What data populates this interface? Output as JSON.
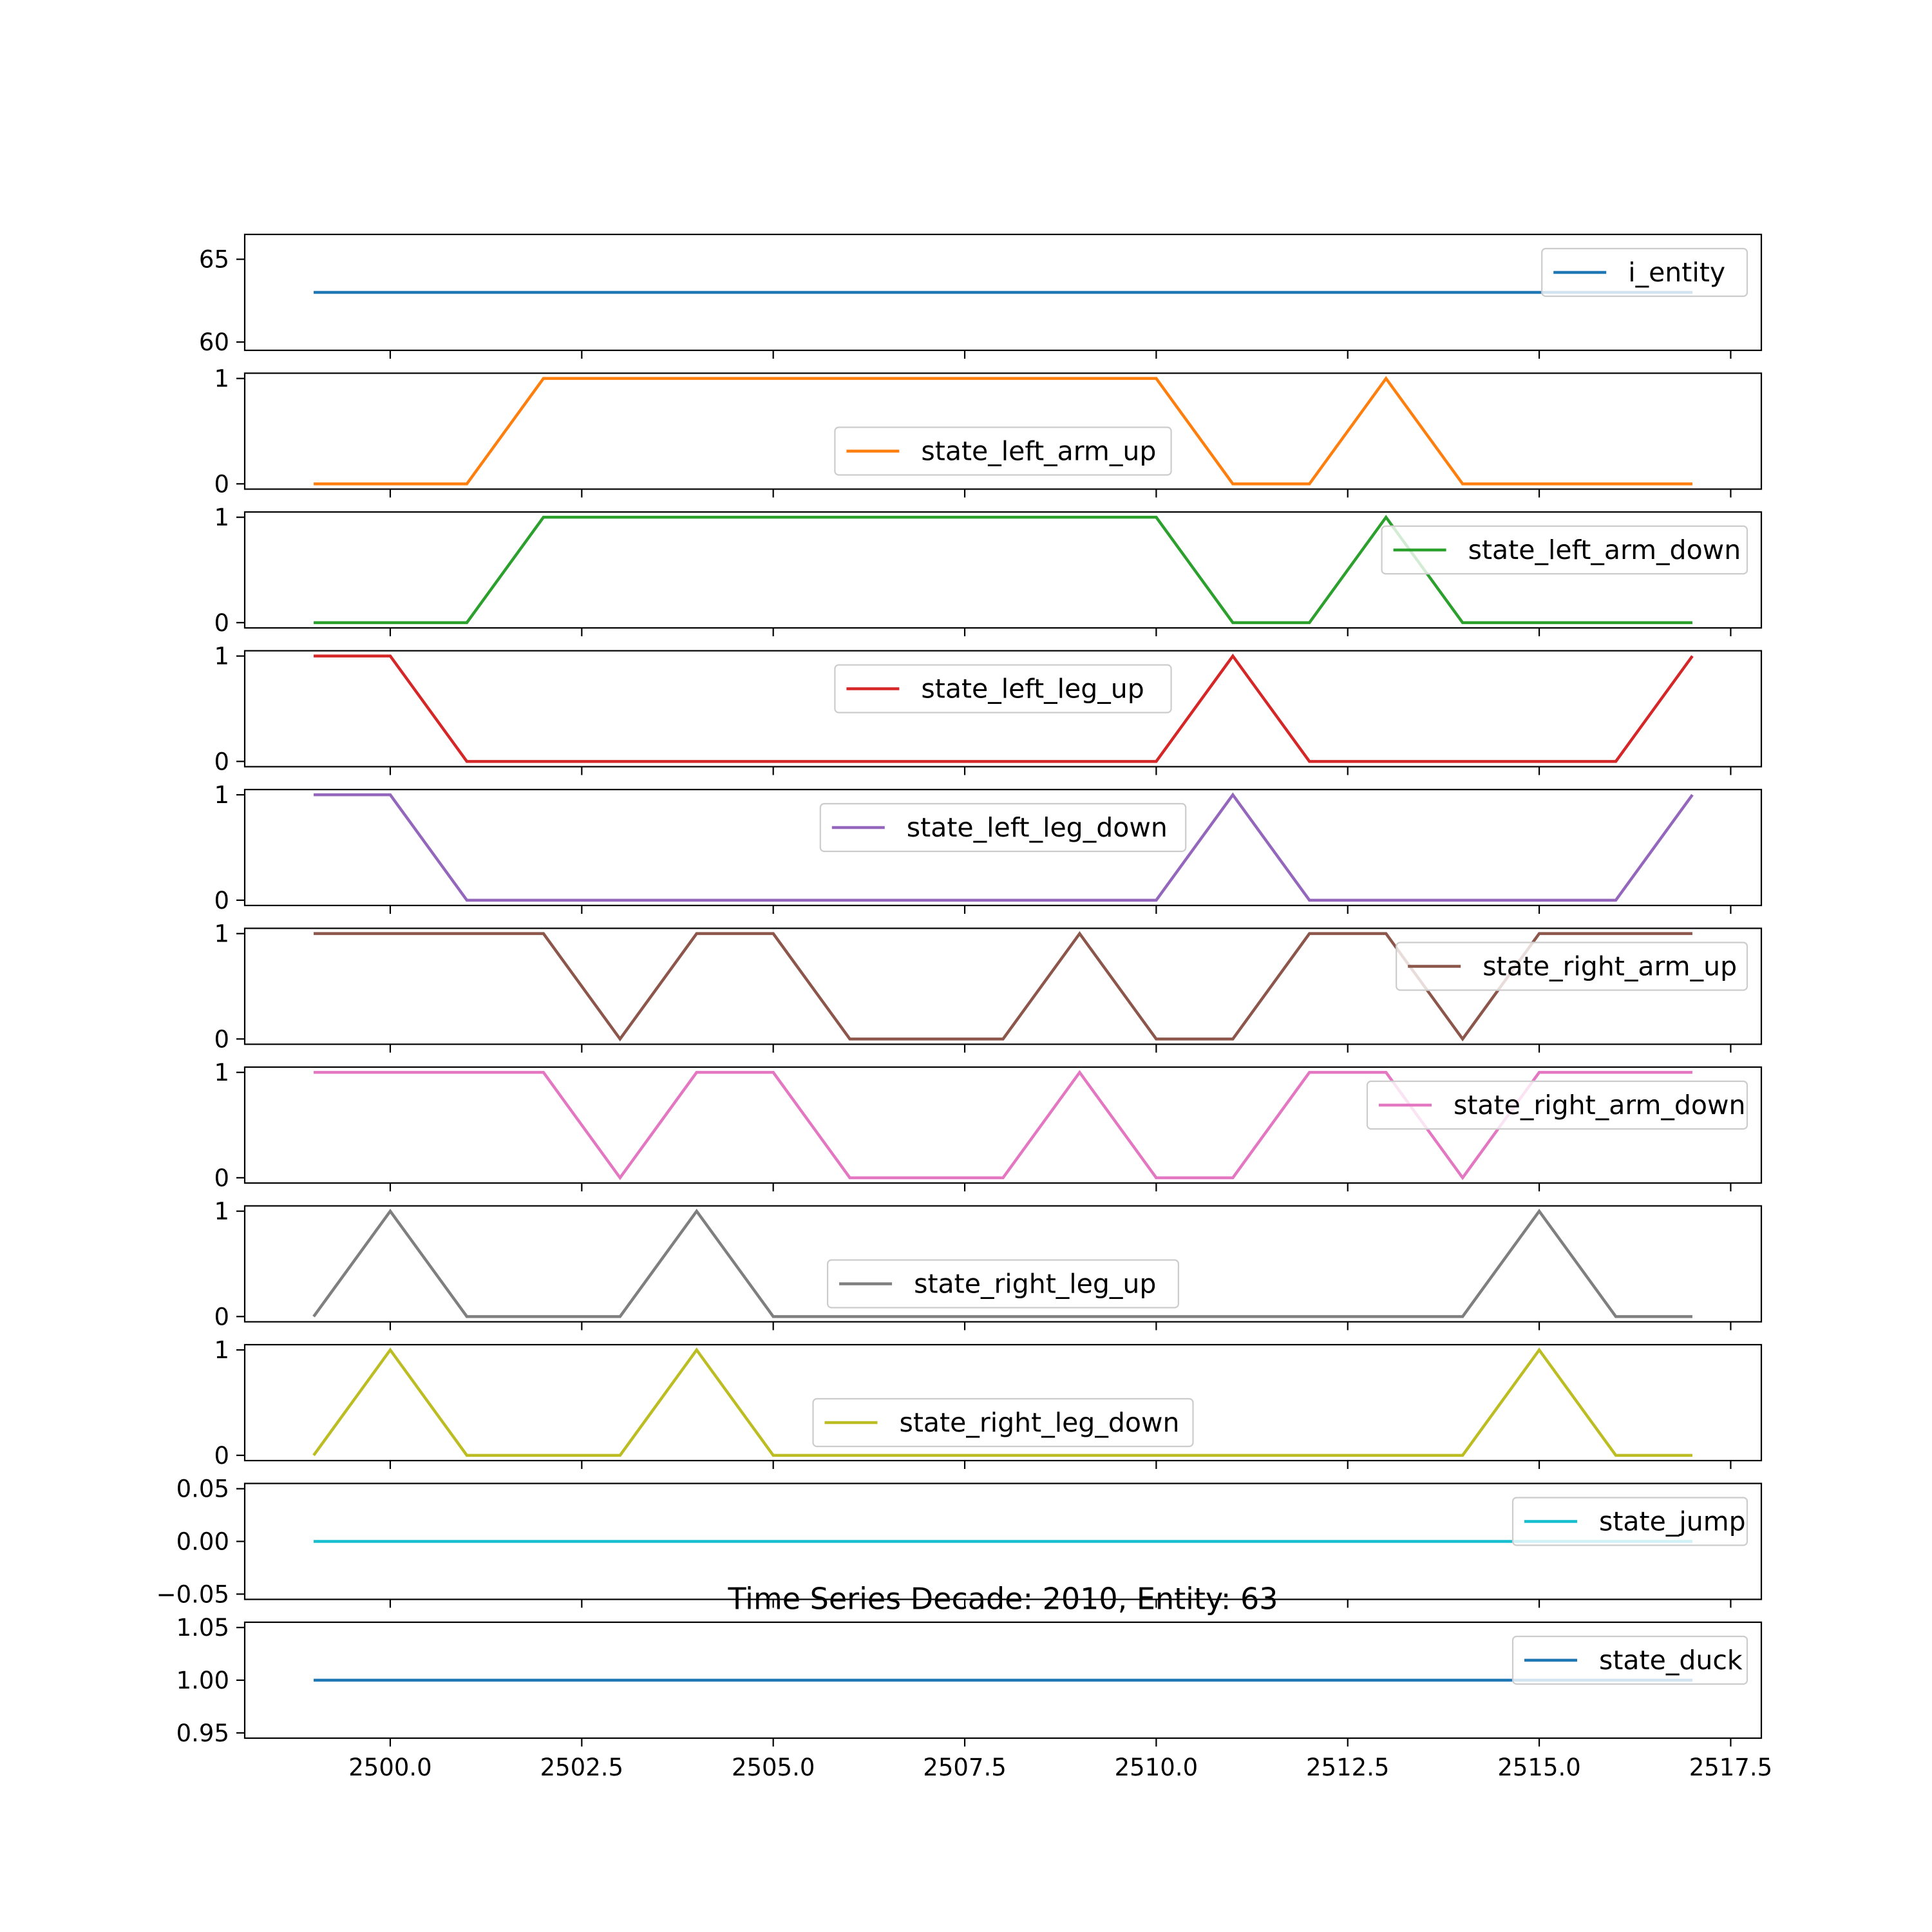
{
  "chart_data": {
    "type": "line",
    "title": "Time Series Decade: 2010, Entity: 63",
    "x": [
      2499,
      2500,
      2501,
      2502,
      2503,
      2504,
      2505,
      2506,
      2507,
      2508,
      2509,
      2510,
      2511,
      2512,
      2513,
      2514,
      2515,
      2516,
      2517
    ],
    "x_ticks": [
      "2500.0",
      "2502.5",
      "2505.0",
      "2507.5",
      "2510.0",
      "2512.5",
      "2515.0",
      "2517.5"
    ],
    "x_tick_values": [
      2500,
      2502.5,
      2505,
      2507.5,
      2510,
      2512.5,
      2515,
      2517.5
    ],
    "xlim": [
      2498.1,
      2517.9
    ],
    "grid": false,
    "panels": [
      {
        "name": "i_entity",
        "color": "#1f77b4",
        "values": [
          63,
          63,
          63,
          63,
          63,
          63,
          63,
          63,
          63,
          63,
          63,
          63,
          63,
          63,
          63,
          63,
          63,
          63,
          63
        ],
        "ylim": [
          59.5,
          66.5
        ],
        "y_ticks": [
          "60",
          "65"
        ],
        "y_tick_values": [
          60,
          65
        ],
        "legend": "upper right"
      },
      {
        "name": "state_left_arm_up",
        "color": "#ff7f0e",
        "values": [
          0,
          0,
          0,
          1,
          1,
          1,
          1,
          1,
          1,
          1,
          1,
          1,
          0,
          0,
          1,
          0,
          0,
          0,
          0
        ],
        "ylim": [
          -0.05,
          1.05
        ],
        "y_ticks": [
          "0",
          "1"
        ],
        "y_tick_values": [
          0,
          1
        ],
        "legend": "lower center"
      },
      {
        "name": "state_left_arm_down",
        "color": "#2ca02c",
        "values": [
          0,
          0,
          0,
          1,
          1,
          1,
          1,
          1,
          1,
          1,
          1,
          1,
          0,
          0,
          1,
          0,
          0,
          0,
          0
        ],
        "ylim": [
          -0.05,
          1.05
        ],
        "y_ticks": [
          "0",
          "1"
        ],
        "y_tick_values": [
          0,
          1
        ],
        "legend": "upper right"
      },
      {
        "name": "state_left_leg_up",
        "color": "#d62728",
        "values": [
          1,
          1,
          0,
          0,
          0,
          0,
          0,
          0,
          0,
          0,
          0,
          0,
          1,
          0,
          0,
          0,
          0,
          0,
          1
        ],
        "ylim": [
          -0.05,
          1.05
        ],
        "y_ticks": [
          "0",
          "1"
        ],
        "y_tick_values": [
          0,
          1
        ],
        "legend": "upper center"
      },
      {
        "name": "state_left_leg_down",
        "color": "#9467bd",
        "values": [
          1,
          1,
          0,
          0,
          0,
          0,
          0,
          0,
          0,
          0,
          0,
          0,
          1,
          0,
          0,
          0,
          0,
          0,
          1
        ],
        "ylim": [
          -0.05,
          1.05
        ],
        "y_ticks": [
          "0",
          "1"
        ],
        "y_tick_values": [
          0,
          1
        ],
        "legend": "upper center"
      },
      {
        "name": "state_right_arm_up",
        "color": "#8c564b",
        "values": [
          1,
          1,
          1,
          1,
          0,
          1,
          1,
          0,
          0,
          0,
          1,
          0,
          0,
          1,
          1,
          0,
          1,
          1,
          1
        ],
        "ylim": [
          -0.05,
          1.05
        ],
        "y_ticks": [
          "0",
          "1"
        ],
        "y_tick_values": [
          0,
          1
        ],
        "legend": "upper right"
      },
      {
        "name": "state_right_arm_down",
        "color": "#e377c2",
        "values": [
          1,
          1,
          1,
          1,
          0,
          1,
          1,
          0,
          0,
          0,
          1,
          0,
          0,
          1,
          1,
          0,
          1,
          1,
          1
        ],
        "ylim": [
          -0.05,
          1.05
        ],
        "y_ticks": [
          "0",
          "1"
        ],
        "y_tick_values": [
          0,
          1
        ],
        "legend": "upper right"
      },
      {
        "name": "state_right_leg_up",
        "color": "#7f7f7f",
        "values": [
          0,
          1,
          0,
          0,
          0,
          1,
          0,
          0,
          0,
          0,
          0,
          0,
          0,
          0,
          0,
          0,
          1,
          0,
          0
        ],
        "ylim": [
          -0.05,
          1.05
        ],
        "y_ticks": [
          "0",
          "1"
        ],
        "y_tick_values": [
          0,
          1
        ],
        "legend": "lower center"
      },
      {
        "name": "state_right_leg_down",
        "color": "#bcbd22",
        "values": [
          0,
          1,
          0,
          0,
          0,
          1,
          0,
          0,
          0,
          0,
          0,
          0,
          0,
          0,
          0,
          0,
          1,
          0,
          0
        ],
        "ylim": [
          -0.05,
          1.05
        ],
        "y_ticks": [
          "0",
          "1"
        ],
        "y_tick_values": [
          0,
          1
        ],
        "legend": "lower center"
      },
      {
        "name": "state_jump",
        "color": "#17becf",
        "values": [
          0,
          0,
          0,
          0,
          0,
          0,
          0,
          0,
          0,
          0,
          0,
          0,
          0,
          0,
          0,
          0,
          0,
          0,
          0
        ],
        "ylim": [
          -0.055,
          0.055
        ],
        "y_ticks": [
          "−0.05",
          "0.00",
          "0.05"
        ],
        "y_tick_values": [
          -0.05,
          0,
          0.05
        ],
        "legend": "upper right"
      },
      {
        "name": "state_duck",
        "color": "#1f77b4",
        "values": [
          1,
          1,
          1,
          1,
          1,
          1,
          1,
          1,
          1,
          1,
          1,
          1,
          1,
          1,
          1,
          1,
          1,
          1,
          1
        ],
        "ylim": [
          0.945,
          1.055
        ],
        "y_ticks": [
          "0.95",
          "1.00",
          "1.05"
        ],
        "y_tick_values": [
          0.95,
          1.0,
          1.05
        ],
        "legend": "upper right"
      }
    ]
  }
}
